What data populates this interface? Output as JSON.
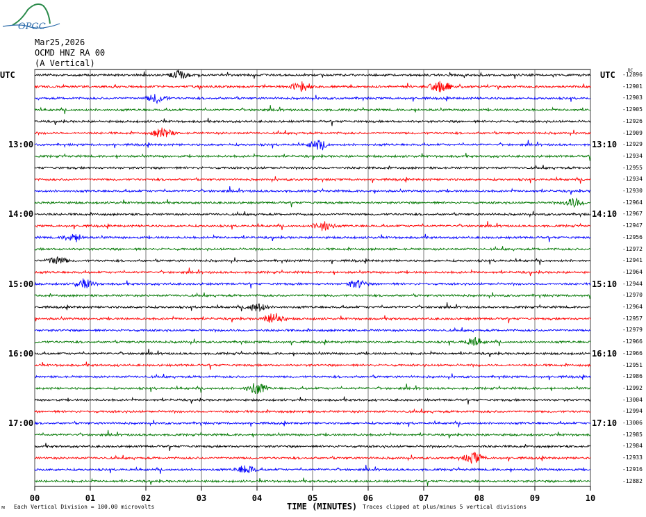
{
  "logo": {
    "text": "OPGC",
    "icon": "opgc-mountain-logo"
  },
  "header": {
    "date": "Mar25,2026",
    "station": "OCMD HNZ RA 00",
    "component": "(A Vertical)"
  },
  "utc_left": "UTC",
  "utc_right": "UTC",
  "footer": {
    "division": "Each Vertical Division =  100.00 microvolts",
    "clipped": "Traces clipped at plus/minus 5 vertical divisions",
    "mark": "ᴍ"
  },
  "colors": {
    "trace_cycle": [
      "#000000",
      "#ff0000",
      "#0000ff",
      "#007700"
    ],
    "grid": "#555555"
  },
  "chart_data": {
    "type": "line",
    "title": "",
    "xlabel": "TIME (MINUTES)",
    "x_ticks": [
      "00",
      "01",
      "02",
      "03",
      "04",
      "05",
      "06",
      "07",
      "08",
      "09",
      "10"
    ],
    "xlim": [
      0,
      10
    ],
    "time_labels_left": [
      "13:00",
      "14:00",
      "15:00",
      "16:00",
      "17:00"
    ],
    "time_labels_right": [
      "13:10",
      "14:10",
      "15:10",
      "16:10",
      "17:10"
    ],
    "time_label_trace_index": [
      6,
      12,
      18,
      24,
      30
    ],
    "right_top_label": "DC",
    "trace_offsets": [
      "-12896",
      "-12901",
      "-12903",
      "-12905",
      "-12926",
      "-12909",
      "-12929",
      "-12934",
      "-12955",
      "-12934",
      "-12930",
      "-12964",
      "-12967",
      "-12947",
      "-12956",
      "-12972",
      "-12941",
      "-12964",
      "-12944",
      "-12970",
      "-12964",
      "-12957",
      "-12979",
      "-12966",
      "-12966",
      "-12951",
      "-12986",
      "-12992",
      "-13004",
      "-12994",
      "-13006",
      "-12985",
      "-12984",
      "-12933",
      "-12916",
      "-12882"
    ],
    "events": [
      {
        "trace": 0,
        "minute": 2.6,
        "strength": 1.6
      },
      {
        "trace": 1,
        "minute": 4.8,
        "strength": 2.0
      },
      {
        "trace": 1,
        "minute": 7.3,
        "strength": 2.6
      },
      {
        "trace": 2,
        "minute": 2.2,
        "strength": 1.8
      },
      {
        "trace": 5,
        "minute": 2.3,
        "strength": 2.2
      },
      {
        "trace": 6,
        "minute": 5.1,
        "strength": 1.8
      },
      {
        "trace": 11,
        "minute": 9.7,
        "strength": 1.8
      },
      {
        "trace": 13,
        "minute": 5.2,
        "strength": 2.0
      },
      {
        "trace": 14,
        "minute": 0.7,
        "strength": 1.6
      },
      {
        "trace": 16,
        "minute": 0.4,
        "strength": 1.7
      },
      {
        "trace": 18,
        "minute": 0.9,
        "strength": 1.8
      },
      {
        "trace": 18,
        "minute": 5.8,
        "strength": 1.6
      },
      {
        "trace": 20,
        "minute": 4.0,
        "strength": 1.8
      },
      {
        "trace": 21,
        "minute": 4.3,
        "strength": 2.6
      },
      {
        "trace": 23,
        "minute": 7.9,
        "strength": 1.6
      },
      {
        "trace": 27,
        "minute": 4.0,
        "strength": 2.6
      },
      {
        "trace": 33,
        "minute": 7.9,
        "strength": 2.2
      },
      {
        "trace": 34,
        "minute": 3.8,
        "strength": 1.8
      }
    ]
  }
}
